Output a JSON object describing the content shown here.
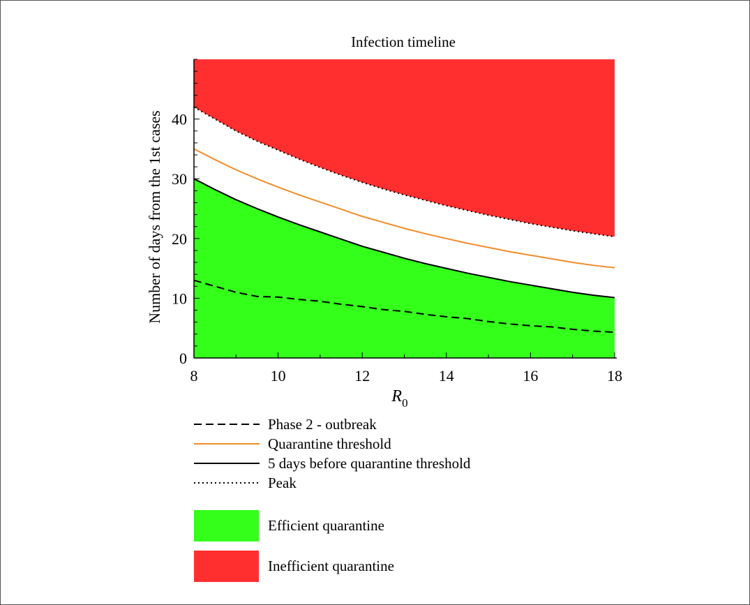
{
  "chart_data": {
    "type": "area",
    "title": "Infection timeline",
    "xlabel": "R",
    "xlabel_subscript": "0",
    "ylabel": "Number of days from the 1st cases",
    "xlim": [
      8,
      18.05
    ],
    "ylim": [
      0,
      50
    ],
    "x_ticks": [
      "8",
      "10",
      "12",
      "14",
      "16",
      "18"
    ],
    "y_ticks": [
      "0",
      "10",
      "20",
      "30",
      "40"
    ],
    "x": [
      8,
      8.5,
      9,
      9.5,
      10,
      10.5,
      11,
      11.5,
      12,
      12.5,
      13,
      13.5,
      14,
      14.5,
      15,
      15.5,
      16,
      16.5,
      17,
      17.5,
      18
    ],
    "series": [
      {
        "name": "Phase 2 - outbreak",
        "style": "dashed",
        "color": "#000000",
        "values": [
          13.0,
          12.0,
          11.0,
          10.3,
          10.2,
          9.8,
          9.5,
          9.0,
          8.6,
          8.1,
          7.8,
          7.3,
          6.9,
          6.6,
          6.1,
          5.7,
          5.4,
          5.2,
          4.8,
          4.5,
          4.3
        ]
      },
      {
        "name": "Quarantine threshold",
        "style": "solid",
        "color": "#f28c28",
        "values": [
          35.0,
          33.2,
          31.5,
          30.0,
          28.6,
          27.3,
          26.1,
          24.9,
          23.7,
          22.7,
          21.7,
          20.8,
          20.0,
          19.2,
          18.5,
          17.8,
          17.2,
          16.6,
          16.0,
          15.5,
          15.1
        ]
      },
      {
        "name": "5 days before quarantine threshold",
        "style": "solid",
        "color": "#000000",
        "values": [
          30.0,
          28.2,
          26.5,
          25.0,
          23.6,
          22.3,
          21.1,
          19.9,
          18.7,
          17.7,
          16.7,
          15.8,
          15.0,
          14.2,
          13.5,
          12.8,
          12.2,
          11.6,
          11.0,
          10.5,
          10.1
        ]
      },
      {
        "name": "Peak",
        "style": "dotted",
        "color": "#000000",
        "values": [
          42.0,
          40.0,
          38.0,
          36.3,
          34.8,
          33.3,
          31.9,
          30.6,
          29.4,
          28.3,
          27.3,
          26.4,
          25.5,
          24.7,
          23.9,
          23.2,
          22.5,
          21.9,
          21.3,
          20.8,
          20.3
        ]
      }
    ],
    "regions": [
      {
        "name": "Efficient quarantine",
        "color": "#33ff1a",
        "below_series": "5 days before quarantine threshold"
      },
      {
        "name": "Inefficient quarantine",
        "color": "#ff2f2f",
        "above_series": "Peak"
      }
    ],
    "legend_placement": "bottom",
    "grid": false
  }
}
